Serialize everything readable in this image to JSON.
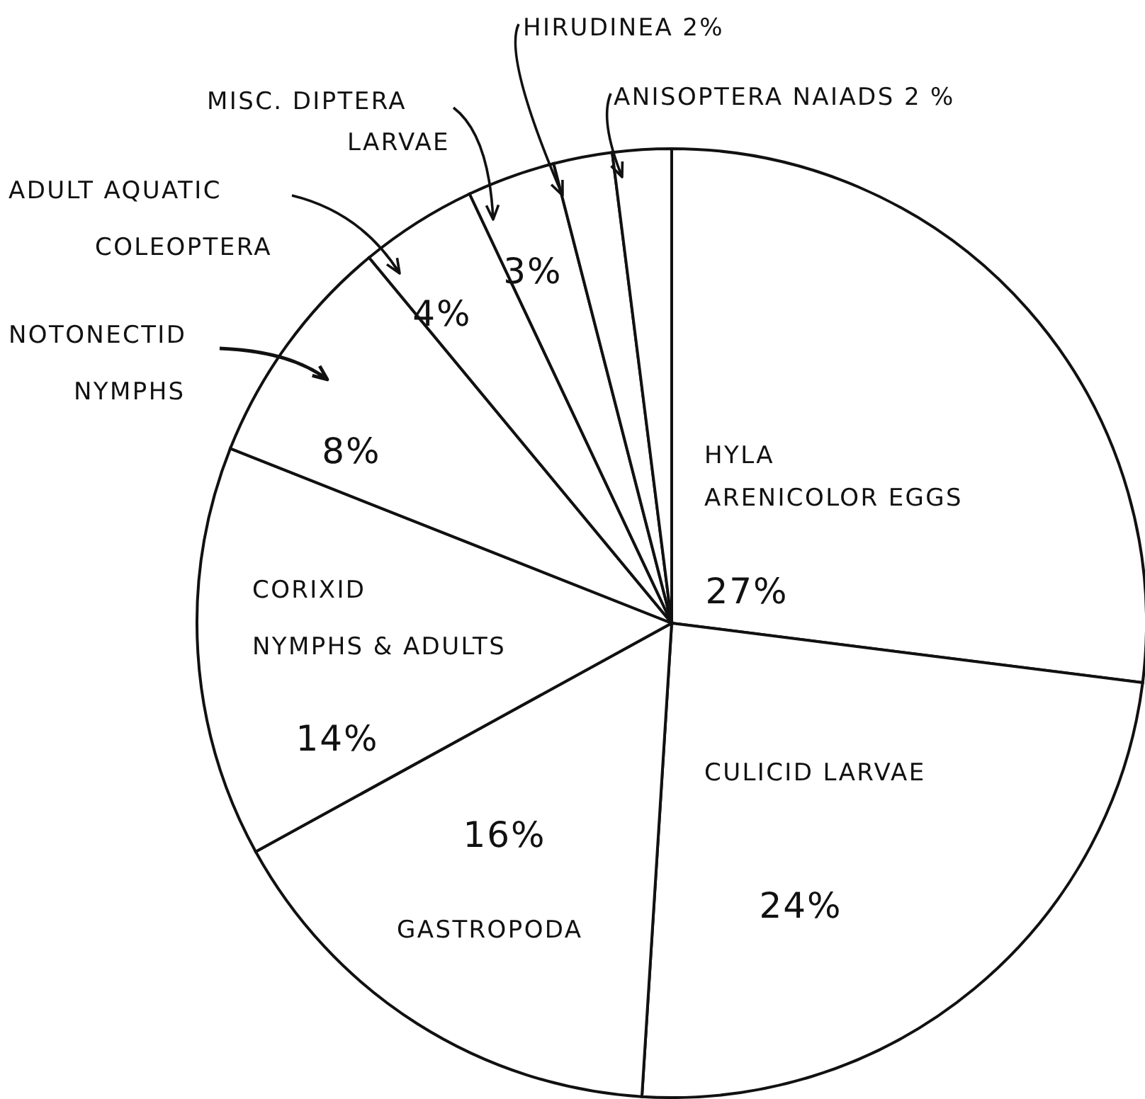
{
  "chart_data": {
    "type": "pie",
    "categories": [
      "HYLA ARENICOLOR EGGS",
      "CULICID LARVAE",
      "GASTROPODA",
      "CORIXID NYMPHS & ADULTS",
      "NOTONECTID NYMPHS",
      "ADULT AQUATIC COLEOPTERA",
      "MISC. DIPTERA LARVAE",
      "HIRUDINEA",
      "ANISOPTERA NAIADS"
    ],
    "values": [
      27,
      24,
      16,
      14,
      8,
      4,
      3,
      2,
      2
    ],
    "value_labels": [
      "27%",
      "24%",
      "16%",
      "14%",
      "8%",
      "4%",
      "3%",
      "2%",
      "2 %"
    ],
    "colors": [
      "#ffffff",
      "#ffffff",
      "#ffffff",
      "#ffffff",
      "#ffffff",
      "#ffffff",
      "#ffffff",
      "#ffffff",
      "#ffffff"
    ]
  }
}
